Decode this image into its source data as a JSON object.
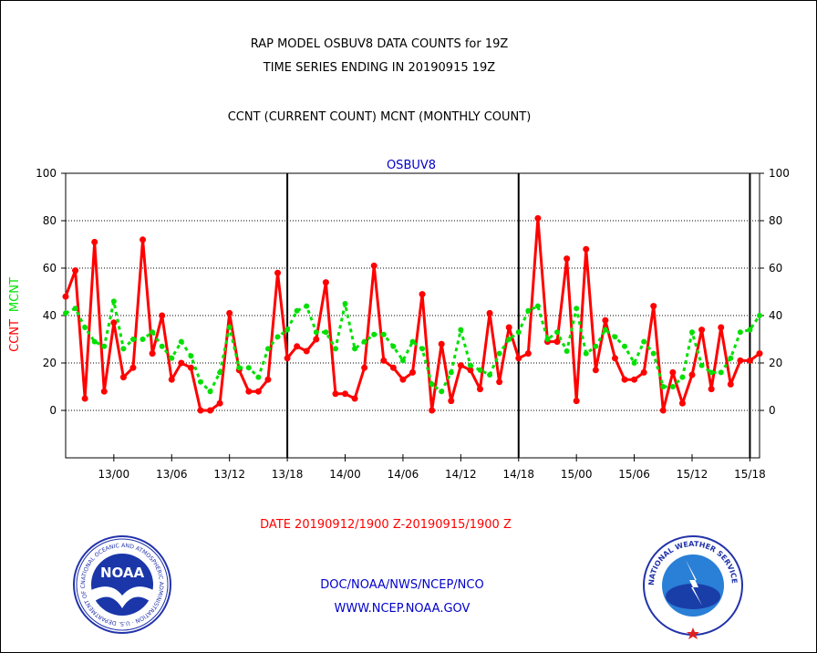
{
  "header": {
    "line1": "RAP MODEL OSBUV8 DATA COUNTS for 19Z",
    "line2": "TIME SERIES ENDING IN 20190915 19Z",
    "line3": "CCNT (CURRENT COUNT) MCNT (MONTHLY COUNT)"
  },
  "footer": {
    "date_range": "DATE 20190912/1900 Z-20190915/1900 Z",
    "org": "DOC/NOAA/NWS/NCEP/NCO",
    "url": "WWW.NCEP.NOAA.GOV"
  },
  "logos": {
    "noaa_word": "NOAA",
    "noaa_ring": "NATIONAL OCEANIC AND ATMOSPHERIC ADMINISTRATION · U.S. DEPARTMENT OF COMMERCE",
    "nws_ring": "NATIONAL WEATHER SERVICE"
  },
  "colors": {
    "ccnt": "#ff0000",
    "mcnt": "#00e000",
    "series_title": "#0000cc",
    "footer_text": "#0000cc"
  },
  "chart_data": {
    "type": "line",
    "title": "OSBUV8",
    "ylabel_left": [
      "CCNT",
      "MCNT"
    ],
    "ylim": [
      -20,
      100
    ],
    "yticks": [
      0,
      20,
      40,
      60,
      80,
      100
    ],
    "xlim": [
      0,
      72
    ],
    "xticks": [
      {
        "x": 5,
        "label": "13/00"
      },
      {
        "x": 11,
        "label": "13/06"
      },
      {
        "x": 17,
        "label": "13/12"
      },
      {
        "x": 23,
        "label": "13/18"
      },
      {
        "x": 29,
        "label": "14/00"
      },
      {
        "x": 35,
        "label": "14/06"
      },
      {
        "x": 41,
        "label": "14/12"
      },
      {
        "x": 47,
        "label": "14/18"
      },
      {
        "x": 53,
        "label": "15/00"
      },
      {
        "x": 59,
        "label": "15/06"
      },
      {
        "x": 65,
        "label": "15/12"
      },
      {
        "x": 71,
        "label": "15/18"
      }
    ],
    "day_dividers": [
      23,
      47,
      71
    ],
    "grid": "horizontal dotted",
    "series": [
      {
        "name": "CCNT",
        "style": "solid",
        "values": [
          48,
          59,
          5,
          71,
          8,
          37,
          14,
          18,
          72,
          24,
          40,
          13,
          20,
          18,
          0,
          0,
          3,
          41,
          17,
          8,
          8,
          13,
          58,
          22,
          27,
          25,
          30,
          54,
          7,
          7,
          5,
          18,
          61,
          21,
          18,
          13,
          16,
          49,
          0,
          28,
          4,
          19,
          17,
          9,
          41,
          12,
          35,
          22,
          24,
          81,
          29,
          29,
          64,
          4,
          68,
          17,
          38,
          22,
          13,
          13,
          16,
          44,
          0,
          16,
          3,
          15,
          34,
          9,
          35,
          11,
          21,
          21,
          24
        ]
      },
      {
        "name": "MCNT",
        "style": "dotted",
        "values": [
          41,
          43,
          35,
          29,
          27,
          46,
          26,
          30,
          30,
          33,
          27,
          22,
          29,
          23,
          12,
          8,
          16,
          35,
          18,
          18,
          14,
          26,
          31,
          34,
          42,
          44,
          33,
          33,
          26,
          45,
          26,
          29,
          32,
          32,
          27,
          21,
          29,
          26,
          11,
          8,
          16,
          34,
          19,
          17,
          15,
          24,
          30,
          33,
          42,
          44,
          30,
          33,
          25,
          43,
          24,
          27,
          34,
          31,
          27,
          20,
          29,
          24,
          10,
          10,
          14,
          33,
          19,
          16,
          16,
          22,
          33,
          34,
          40
        ]
      }
    ]
  }
}
